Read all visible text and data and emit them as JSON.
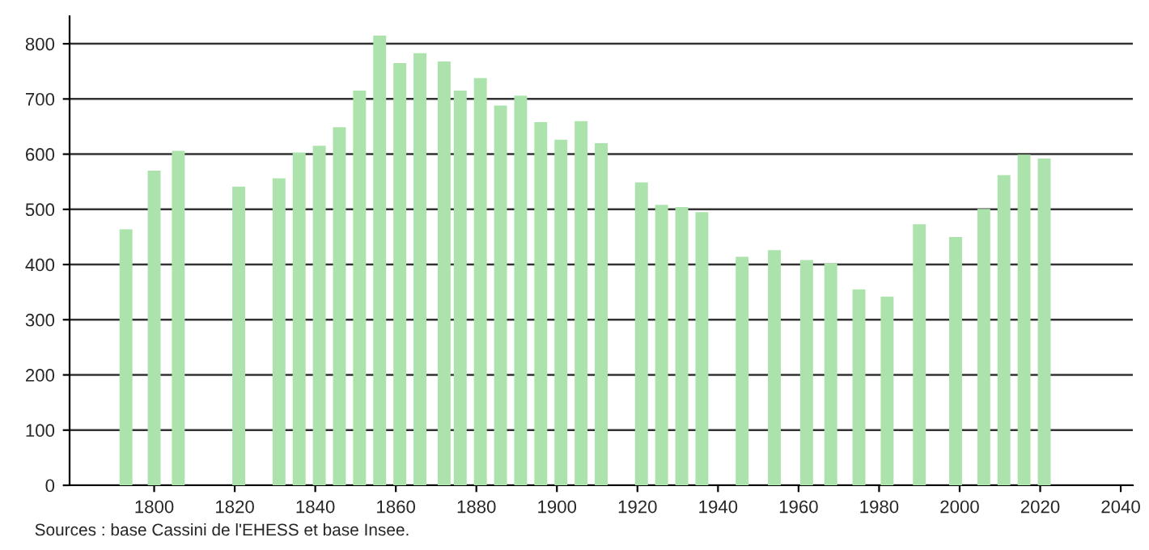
{
  "chart_data": {
    "type": "bar",
    "x": [
      1793,
      1800,
      1806,
      1821,
      1831,
      1836,
      1841,
      1846,
      1851,
      1856,
      1861,
      1866,
      1872,
      1876,
      1881,
      1886,
      1891,
      1896,
      1901,
      1906,
      1911,
      1921,
      1926,
      1931,
      1936,
      1946,
      1954,
      1962,
      1968,
      1975,
      1982,
      1990,
      1999,
      2006,
      2011,
      2016,
      2021
    ],
    "values": [
      464,
      570,
      606,
      541,
      556,
      603,
      615,
      649,
      715,
      815,
      765,
      783,
      768,
      715,
      738,
      688,
      706,
      658,
      626,
      660,
      620,
      549,
      508,
      504,
      495,
      414,
      426,
      408,
      402,
      355,
      342,
      473,
      450,
      501,
      562,
      599,
      592
    ],
    "color": "#ace3ac",
    "xlim": [
      1779,
      2043
    ],
    "xticks": [
      1800,
      1820,
      1840,
      1860,
      1880,
      1900,
      1920,
      1940,
      1960,
      1980,
      2000,
      2020,
      2040
    ],
    "ylim": [
      0,
      850
    ],
    "yticks": [
      0,
      100,
      200,
      300,
      400,
      500,
      600,
      700,
      800
    ],
    "grid": "y",
    "annotations": [
      "Sources : base Cassini de l'EHESS et base Insee."
    ]
  }
}
